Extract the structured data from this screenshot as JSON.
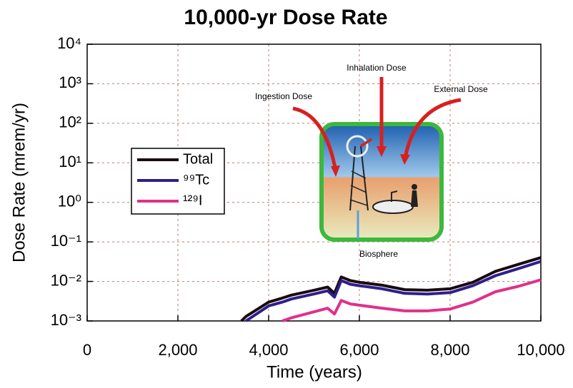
{
  "chart_data": {
    "type": "line",
    "title": "10,000-yr Dose Rate",
    "x_label": "Time (years)",
    "y_label": "Dose Rate (mrem/yr)",
    "log_y": true,
    "grid": true,
    "xlim": [
      0,
      10000
    ],
    "xticks": [
      0,
      {
        "value": 2000,
        "label": "2,000"
      },
      {
        "value": 4000,
        "label": "4,000"
      },
      {
        "value": 6000,
        "label": "6,000"
      },
      {
        "value": 8000,
        "label": "8,000"
      },
      {
        "value": 10000,
        "label": "10,000"
      }
    ],
    "ylim": [
      0.001,
      10000
    ],
    "yticks": [
      {
        "value": 0.001,
        "label": "10⁻³"
      },
      {
        "value": 0.01,
        "label": "10⁻²"
      },
      {
        "value": 0.1,
        "label": "10⁻¹"
      },
      {
        "value": 1,
        "label": "10⁰"
      },
      {
        "value": 10,
        "label": "10¹"
      },
      {
        "value": 100,
        "label": "10²"
      },
      {
        "value": 1000,
        "label": "10³"
      },
      {
        "value": 10000,
        "label": "10⁴"
      }
    ],
    "x": [
      3400,
      3500,
      4000,
      4300,
      4500,
      5000,
      5300,
      5450,
      5600,
      5800,
      6000,
      6500,
      7000,
      7500,
      8000,
      8500,
      9000,
      9500,
      10000
    ],
    "series": [
      {
        "name": "Total",
        "color": "#1a0a12",
        "values": [
          0.001,
          0.0013,
          0.003,
          0.0038,
          0.0045,
          0.006,
          0.0072,
          0.005,
          0.013,
          0.0105,
          0.0095,
          0.008,
          0.0062,
          0.006,
          0.0065,
          0.0095,
          0.018,
          0.027,
          0.04
        ]
      },
      {
        "name": "⁹⁹Tc",
        "color": "#2e1e8c",
        "values": [
          null,
          0.001,
          0.0024,
          0.003,
          0.0036,
          0.0048,
          0.0058,
          0.004,
          0.0105,
          0.0085,
          0.0078,
          0.0065,
          0.005,
          0.0048,
          0.0052,
          0.0078,
          0.014,
          0.021,
          0.032
        ]
      },
      {
        "name": "¹²⁹I",
        "color": "#e0308a",
        "values": [
          null,
          null,
          null,
          0.001,
          0.0012,
          0.0017,
          0.0021,
          0.0015,
          0.0033,
          0.0027,
          0.0025,
          0.0021,
          0.0018,
          0.0018,
          0.002,
          0.003,
          0.0055,
          0.0075,
          0.011
        ]
      }
    ],
    "annotations": [
      "Inhalation Dose",
      "Ingestion Dose",
      "External Dose",
      "Biosphere"
    ]
  }
}
